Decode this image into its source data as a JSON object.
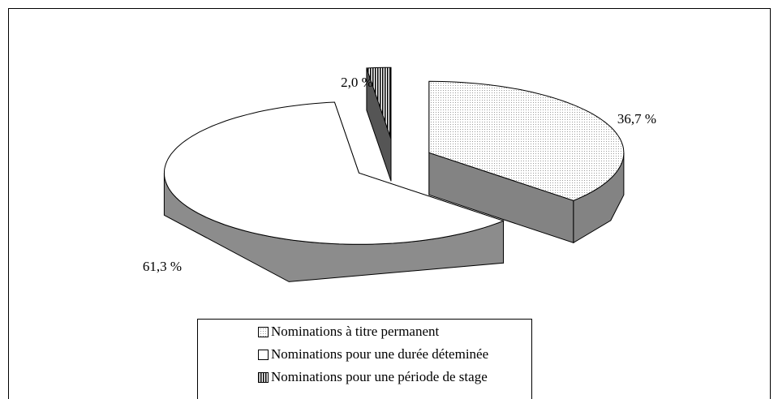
{
  "chart_data": {
    "type": "pie3d",
    "categories": [
      "Nominations à titre permanent",
      "Nominations pour une durée déteminée",
      "Nominations pour une période de stage"
    ],
    "values": [
      36.7,
      61.3,
      2.0
    ],
    "value_labels": [
      "36,7 %",
      "61,3 %",
      "2,0 %"
    ],
    "colors": [
      "#eeeeee",
      "#ffffff",
      "#9a9a9a"
    ]
  }
}
